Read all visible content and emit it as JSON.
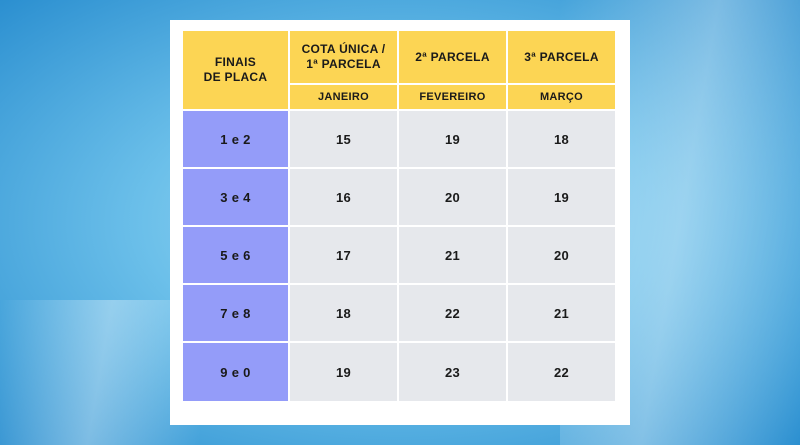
{
  "table": {
    "header": {
      "plate_col": [
        "FINAIS",
        "DE PLACA"
      ],
      "columns": [
        {
          "top": [
            "COTA ÚNICA /",
            "1ª PARCELA"
          ],
          "month": "JANEIRO"
        },
        {
          "top": [
            "2ª PARCELA"
          ],
          "month": "FEVEREIRO"
        },
        {
          "top": [
            "3ª PARCELA"
          ],
          "month": "MARÇO"
        }
      ]
    },
    "rows": [
      {
        "plate": "1 e 2",
        "values": [
          "15",
          "19",
          "18"
        ]
      },
      {
        "plate": "3 e 4",
        "values": [
          "16",
          "20",
          "19"
        ]
      },
      {
        "plate": "5 e 6",
        "values": [
          "17",
          "21",
          "20"
        ]
      },
      {
        "plate": "7 e 8",
        "values": [
          "18",
          "22",
          "21"
        ]
      },
      {
        "plate": "9 e 0",
        "values": [
          "19",
          "23",
          "22"
        ]
      }
    ]
  },
  "colors": {
    "header_bg": "#fcd554",
    "plate_bg": "#949cf9",
    "cell_bg": "#e6e8ec",
    "page_bg": "#6cc0ea"
  }
}
